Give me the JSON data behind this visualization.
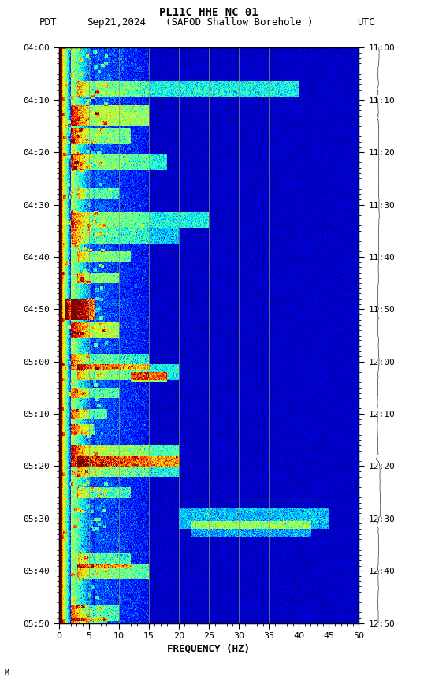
{
  "title_line1": "PL11C HHE NC 01",
  "title_line2_pdt": "PDT   Sep21,2024     (SAFOD Shallow Borehole )                UTC",
  "title_left": "PDT",
  "title_date": "Sep21,2024",
  "title_station": "(SAFOD Shallow Borehole )",
  "title_right": "UTC",
  "xlabel": "FREQUENCY (HZ)",
  "freq_min": 0,
  "freq_max": 50,
  "freq_ticks": [
    0,
    5,
    10,
    15,
    20,
    25,
    30,
    35,
    40,
    45,
    50
  ],
  "pdt_labels": [
    "04:00",
    "04:10",
    "04:20",
    "04:30",
    "04:40",
    "04:50",
    "05:00",
    "05:10",
    "05:20",
    "05:30",
    "05:40",
    "05:50"
  ],
  "utc_labels": [
    "11:00",
    "11:10",
    "11:20",
    "11:30",
    "11:40",
    "11:50",
    "12:00",
    "12:10",
    "12:20",
    "12:30",
    "12:40",
    "12:50"
  ],
  "pdt_minutes": [
    0,
    10,
    20,
    30,
    40,
    50,
    60,
    70,
    80,
    90,
    100,
    110
  ],
  "bg_color": "white",
  "colormap": "jet",
  "vmin": -5,
  "vmax": 3,
  "grid_color": "#999966",
  "grid_freq_lines": [
    5,
    10,
    15,
    20,
    25,
    30,
    35,
    40,
    45
  ],
  "label_fontsize": 8,
  "title_fontsize": 9
}
